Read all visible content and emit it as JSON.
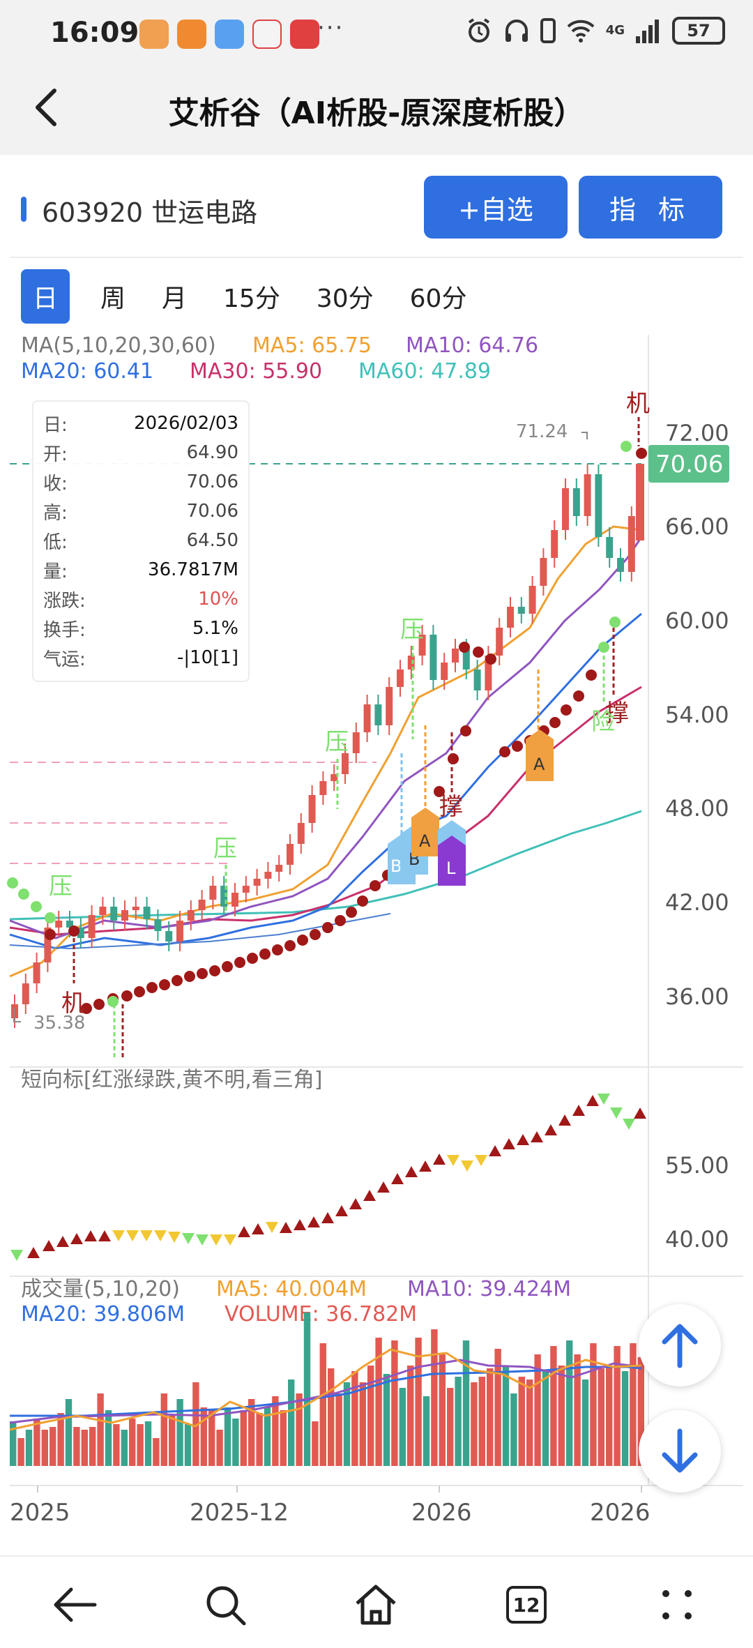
{
  "status_bar": {
    "time": "16:09",
    "more": "···",
    "network": "4G",
    "battery": "57",
    "icons": [
      "alarm-icon",
      "headphones-icon",
      "wifi-icon",
      "signal-icon",
      "battery-icon"
    ]
  },
  "header": {
    "title": "艾析谷（AI析股-原深度析股）",
    "back_icon": "chevron-left-icon"
  },
  "stock": {
    "name": "603920 世运电路",
    "add_favorite_label": "+自选",
    "indicator_label": "指 标"
  },
  "period_tabs": [
    {
      "label": "日",
      "active": true
    },
    {
      "label": "周",
      "active": false
    },
    {
      "label": "月",
      "active": false
    },
    {
      "label": "15分",
      "active": false
    },
    {
      "label": "30分",
      "active": false
    },
    {
      "label": "60分",
      "active": false
    }
  ],
  "ma_legend": {
    "title": "MA(5,10,20,30,60)",
    "ma5": "MA5: 65.75",
    "ma10": "MA10: 64.76",
    "ma20": "MA20: 60.41",
    "ma30": "MA30: 55.90",
    "ma60": "MA60: 47.89"
  },
  "info_box": {
    "rows": [
      {
        "key": "日:",
        "value": "2026/02/03"
      },
      {
        "key": "开:",
        "value": "64.90"
      },
      {
        "key": "收:",
        "value": "70.06"
      },
      {
        "key": "高:",
        "value": "70.06"
      },
      {
        "key": "低:",
        "value": "64.50"
      },
      {
        "key": "量:",
        "value": "36.7817M"
      },
      {
        "key": "涨跌:",
        "value": "10%"
      },
      {
        "key": "换手:",
        "value": "5.1%"
      },
      {
        "key": "气运:",
        "value": "-|10[1]"
      }
    ]
  },
  "price_axis": {
    "ticks": [
      "72.00",
      "66.00",
      "60.00",
      "54.00",
      "48.00",
      "42.00",
      "36.00"
    ],
    "last_price": "70.06",
    "high_label": "71.24",
    "low_label": "35.38"
  },
  "signals": {
    "ji": "机",
    "ya": "压",
    "cheng": "撑",
    "xian": "险",
    "A": "A",
    "B": "B",
    "L": "L"
  },
  "short_indicator": {
    "title": "短向标[红涨绿跌,黄不明,看三角]",
    "ticks": [
      "55.00",
      "40.00"
    ]
  },
  "volume": {
    "title": "成交量(5,10,20)",
    "ma5": "MA5: 40.004M",
    "ma10": "MA10: 39.424M",
    "ma20": "MA20: 39.806M",
    "volume": "VOLUME: 36.782M"
  },
  "x_axis": [
    "2025",
    "2025-12",
    "2026",
    "2026"
  ],
  "colors": {
    "up": "#e05a52",
    "down": "#3aa38e",
    "ma5": "#f0a030",
    "ma10": "#9055c0",
    "ma20": "#2f6fe0",
    "ma30": "#c8306a",
    "ma60": "#40c0b8",
    "accent": "#2f6fe0"
  },
  "chart_data": {
    "type": "candlestick",
    "x_labels": [
      "2025",
      "2025-12",
      "2026",
      "2026"
    ],
    "y_ticks": [
      72,
      66,
      60,
      54,
      48,
      42,
      36
    ],
    "last_close": 70.06,
    "period_high": 71.24,
    "period_low": 35.38,
    "ma": {
      "MA5": 65.75,
      "MA10": 64.76,
      "MA20": 60.41,
      "MA30": 55.9,
      "MA60": 47.89
    },
    "volume": {
      "MA5": "40.004M",
      "MA10": "39.424M",
      "MA20": "39.806M",
      "VOLUME": "36.782M"
    }
  },
  "nav": {
    "back_icon": "arrow-left-icon",
    "search_icon": "search-icon",
    "home_icon": "home-icon",
    "tabs_count": "12",
    "menu_icon": "more-dots-icon",
    "scroll_up_icon": "arrow-up-icon",
    "scroll_down_icon": "arrow-down-icon"
  }
}
